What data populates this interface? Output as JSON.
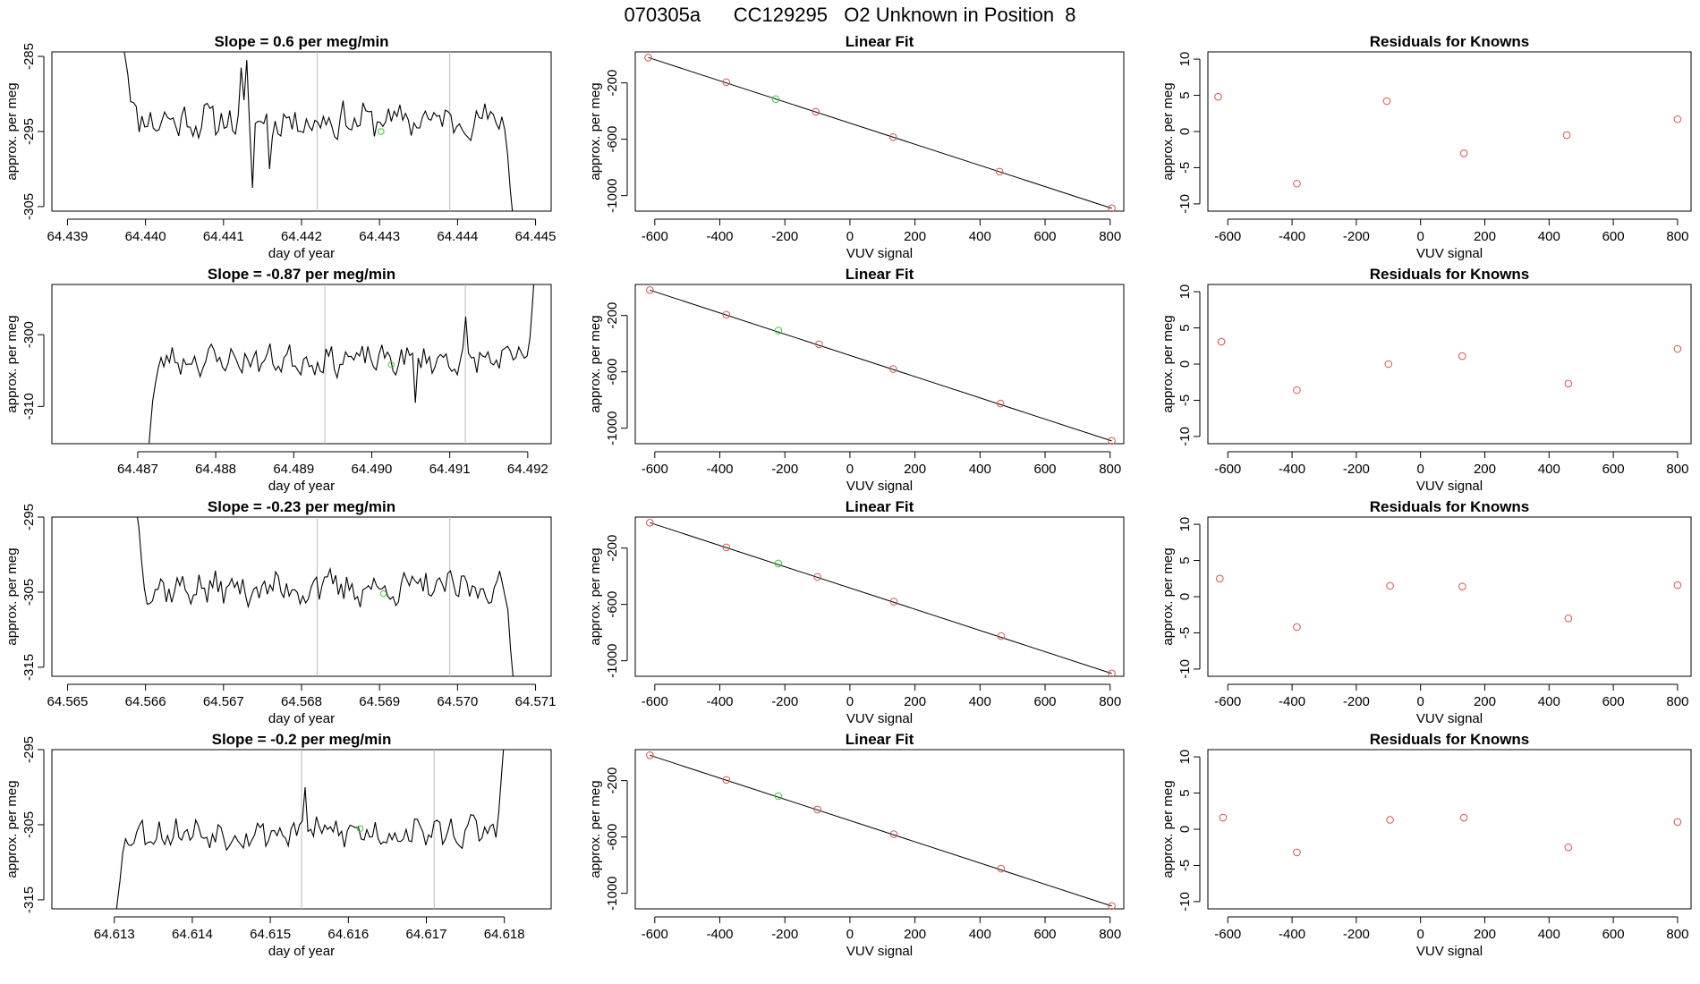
{
  "page": {
    "title": "070305a      CC129295   O2 Unknown in Position  8"
  },
  "styles": {
    "trace_color": "#000000",
    "marker_red": "#d9534f",
    "marker_green": "#33cc33",
    "gray_line": "#bbbbbb"
  },
  "chart_data": [
    {
      "type": "line",
      "row": 0,
      "col": 0,
      "title": "Slope =  0.6  per meg/min",
      "xlabel": "day of year",
      "ylabel": "approx. per meg",
      "xlim": [
        64.4388,
        64.4452
      ],
      "ylim": [
        -305.6,
        -284.4
      ],
      "xticks": [
        64.439,
        64.44,
        64.441,
        64.442,
        64.443,
        64.444,
        64.445
      ],
      "xtick_labels": [
        "64.439",
        "64.440",
        "64.441",
        "64.442",
        "64.443",
        "64.444",
        "64.445"
      ],
      "yticks": [
        -285,
        -295,
        -305
      ],
      "ytick_labels": [
        "-285",
        "-295",
        "-305"
      ],
      "vlines": [
        64.4422,
        64.4439
      ],
      "trace": {
        "x_start": 64.4397,
        "x_end": 64.44475,
        "base": -293.5,
        "amp": 2.0,
        "seed": 11,
        "start_level": -281,
        "end_level": -310,
        "ramp_in": 7,
        "ramp_out": 6,
        "spikes": [
          [
            64.4413,
            -285.5
          ],
          [
            64.44123,
            -286.5
          ],
          [
            64.44138,
            -302.5
          ],
          [
            64.4416,
            -300
          ]
        ]
      },
      "green_point": {
        "x": 64.44302,
        "y": -295.0
      }
    },
    {
      "type": "scatter",
      "row": 0,
      "col": 1,
      "title": "Linear Fit",
      "xlabel": "VUV signal",
      "ylabel": "approx. per meg",
      "xlim": [
        -660,
        842
      ],
      "ylim": [
        -1110,
        20
      ],
      "xticks": [
        -600,
        -400,
        -200,
        0,
        200,
        400,
        600,
        800
      ],
      "xtick_labels": [
        "-600",
        "-400",
        "-200",
        "0",
        "200",
        "400",
        "600",
        "800"
      ],
      "yticks": [
        -200,
        -600,
        -1000
      ],
      "ytick_labels": [
        "-200",
        "-600",
        "-1000"
      ],
      "fit_line": [
        [
          -620,
          -20
        ],
        [
          805,
          -1090
        ]
      ],
      "points": [
        [
          -620,
          -20
        ],
        [
          -380,
          -195
        ],
        [
          -105,
          -405
        ],
        [
          133,
          -585
        ],
        [
          460,
          -830
        ],
        [
          805,
          -1090
        ]
      ],
      "green_point": [
        -228,
        -315
      ]
    },
    {
      "type": "scatter",
      "row": 0,
      "col": 2,
      "title": "Residuals for Knowns",
      "xlabel": "VUV signal",
      "ylabel": "approx. per meg",
      "xlim": [
        -662,
        842
      ],
      "ylim": [
        -11,
        11
      ],
      "xticks": [
        -600,
        -400,
        -200,
        0,
        200,
        400,
        600,
        800
      ],
      "xtick_labels": [
        "-600",
        "-400",
        "-200",
        "0",
        "200",
        "400",
        "600",
        "800"
      ],
      "yticks": [
        10,
        5,
        0,
        -5,
        -10
      ],
      "ytick_labels": [
        "10",
        "5",
        "0",
        "-5",
        "-10"
      ],
      "points": [
        [
          -630,
          4.8
        ],
        [
          -385,
          -7.2
        ],
        [
          -105,
          4.2
        ],
        [
          135,
          -3.0
        ],
        [
          455,
          -0.5
        ],
        [
          800,
          1.7
        ]
      ]
    },
    {
      "type": "line",
      "row": 1,
      "col": 0,
      "title": "Slope =  -0.87  per meg/min",
      "xlabel": "day of year",
      "ylabel": "approx. per meg",
      "xlim": [
        64.4859,
        64.4923
      ],
      "ylim": [
        -315.2,
        -293.0
      ],
      "xticks": [
        64.487,
        64.488,
        64.489,
        64.49,
        64.491,
        64.492
      ],
      "xtick_labels": [
        "64.487",
        "64.488",
        "64.489",
        "64.490",
        "64.491",
        "64.492"
      ],
      "yticks": [
        -300,
        -310
      ],
      "ytick_labels": [
        "-300",
        "-310"
      ],
      "vlines": [
        64.4894,
        64.4912
      ],
      "trace": {
        "x_start": 64.48712,
        "x_end": 64.4921,
        "base": -303.5,
        "amp": 1.7,
        "seed": 23,
        "start_level": -318,
        "end_level": -290,
        "ramp_in": 6,
        "ramp_out": 4,
        "spikes": [
          [
            64.4912,
            -297.5
          ],
          [
            64.49055,
            -309.5
          ]
        ]
      },
      "green_point": {
        "x": 64.49025,
        "y": -304.2
      }
    },
    {
      "type": "scatter",
      "row": 1,
      "col": 1,
      "title": "Linear Fit",
      "xlabel": "VUV signal",
      "ylabel": "approx. per meg",
      "xlim": [
        -660,
        842
      ],
      "ylim": [
        -1110,
        20
      ],
      "xticks": [
        -600,
        -400,
        -200,
        0,
        200,
        400,
        600,
        800
      ],
      "xtick_labels": [
        "-600",
        "-400",
        "-200",
        "0",
        "200",
        "400",
        "600",
        "800"
      ],
      "yticks": [
        -200,
        -600,
        -1000
      ],
      "ytick_labels": [
        "-200",
        "-600",
        "-1000"
      ],
      "fit_line": [
        [
          -615,
          -20
        ],
        [
          805,
          -1090
        ]
      ],
      "points": [
        [
          -615,
          -20
        ],
        [
          -380,
          -195
        ],
        [
          -95,
          -405
        ],
        [
          133,
          -580
        ],
        [
          463,
          -825
        ],
        [
          805,
          -1090
        ]
      ],
      "green_point": [
        -220,
        -307
      ]
    },
    {
      "type": "scatter",
      "row": 1,
      "col": 2,
      "title": "Residuals for Knowns",
      "xlabel": "VUV signal",
      "ylabel": "approx. per meg",
      "xlim": [
        -662,
        842
      ],
      "ylim": [
        -11,
        11
      ],
      "xticks": [
        -600,
        -400,
        -200,
        0,
        200,
        400,
        600,
        800
      ],
      "xtick_labels": [
        "-600",
        "-400",
        "-200",
        "0",
        "200",
        "400",
        "600",
        "800"
      ],
      "yticks": [
        10,
        5,
        0,
        -5,
        -10
      ],
      "ytick_labels": [
        "10",
        "5",
        "0",
        "-5",
        "-10"
      ],
      "points": [
        [
          -620,
          3.1
        ],
        [
          -385,
          -3.6
        ],
        [
          -100,
          0.0
        ],
        [
          130,
          1.1
        ],
        [
          460,
          -2.7
        ],
        [
          800,
          2.1
        ]
      ]
    },
    {
      "type": "line",
      "row": 2,
      "col": 0,
      "title": "Slope =  -0.23  per meg/min",
      "xlabel": "day of year",
      "ylabel": "approx. per meg",
      "xlim": [
        64.5648,
        64.5712
      ],
      "ylim": [
        -316.2,
        -295.0
      ],
      "xticks": [
        64.565,
        64.566,
        64.567,
        64.568,
        64.569,
        64.57,
        64.571
      ],
      "xtick_labels": [
        "64.565",
        "64.566",
        "64.567",
        "64.568",
        "64.569",
        "64.570",
        "64.571"
      ],
      "yticks": [
        -295,
        -305,
        -315
      ],
      "ytick_labels": [
        "-295",
        "-305",
        "-315"
      ],
      "vlines": [
        64.5682,
        64.5699
      ],
      "trace": {
        "x_start": 64.56588,
        "x_end": 64.57075,
        "base": -304.5,
        "amp": 1.9,
        "seed": 37,
        "start_level": -293,
        "end_level": -318,
        "ramp_in": 5,
        "ramp_out": 6,
        "spikes": [
          [
            64.5682,
            -303.0
          ]
        ]
      },
      "green_point": {
        "x": 64.56905,
        "y": -305.2
      }
    },
    {
      "type": "scatter",
      "row": 2,
      "col": 1,
      "title": "Linear Fit",
      "xlabel": "VUV signal",
      "ylabel": "approx. per meg",
      "xlim": [
        -660,
        842
      ],
      "ylim": [
        -1110,
        20
      ],
      "xticks": [
        -600,
        -400,
        -200,
        0,
        200,
        400,
        600,
        800
      ],
      "xtick_labels": [
        "-600",
        "-400",
        "-200",
        "0",
        "200",
        "400",
        "600",
        "800"
      ],
      "yticks": [
        -200,
        -600,
        -1000
      ],
      "ytick_labels": [
        "-200",
        "-600",
        "-1000"
      ],
      "fit_line": [
        [
          -615,
          -20
        ],
        [
          805,
          -1090
        ]
      ],
      "points": [
        [
          -615,
          -20
        ],
        [
          -380,
          -195
        ],
        [
          -100,
          -405
        ],
        [
          135,
          -580
        ],
        [
          465,
          -825
        ],
        [
          805,
          -1090
        ]
      ],
      "green_point": [
        -220,
        -310
      ]
    },
    {
      "type": "scatter",
      "row": 2,
      "col": 2,
      "title": "Residuals for Knowns",
      "xlabel": "VUV signal",
      "ylabel": "approx. per meg",
      "xlim": [
        -662,
        842
      ],
      "ylim": [
        -11,
        11
      ],
      "xticks": [
        -600,
        -400,
        -200,
        0,
        200,
        400,
        600,
        800
      ],
      "xtick_labels": [
        "-600",
        "-400",
        "-200",
        "0",
        "200",
        "400",
        "600",
        "800"
      ],
      "yticks": [
        10,
        5,
        0,
        -5,
        -10
      ],
      "ytick_labels": [
        "10",
        "5",
        "0",
        "-5",
        "-10"
      ],
      "points": [
        [
          -625,
          2.5
        ],
        [
          -385,
          -4.2
        ],
        [
          -95,
          1.5
        ],
        [
          130,
          1.4
        ],
        [
          460,
          -3.0
        ],
        [
          800,
          1.6
        ]
      ]
    },
    {
      "type": "line",
      "row": 3,
      "col": 0,
      "title": "Slope =  -0.2  per meg/min",
      "xlabel": "day of year",
      "ylabel": "approx. per meg",
      "xlim": [
        64.6122,
        64.6186
      ],
      "ylim": [
        -316.2,
        -295.0
      ],
      "xticks": [
        64.613,
        64.614,
        64.615,
        64.616,
        64.617,
        64.618
      ],
      "xtick_labels": [
        "64.613",
        "64.614",
        "64.615",
        "64.616",
        "64.617",
        "64.618"
      ],
      "yticks": [
        -295,
        -305,
        -315
      ],
      "ytick_labels": [
        "-295",
        "-305",
        "-315"
      ],
      "vlines": [
        64.6154,
        64.6171
      ],
      "trace": {
        "x_start": 64.613,
        "x_end": 64.618,
        "base": -306.0,
        "amp": 1.8,
        "seed": 53,
        "start_level": -318,
        "end_level": -293,
        "ramp_in": 6,
        "ramp_out": 4,
        "spikes": [
          [
            64.61545,
            -300.0
          ]
        ]
      },
      "green_point": {
        "x": 64.61615,
        "y": -305.5
      }
    },
    {
      "type": "scatter",
      "row": 3,
      "col": 1,
      "title": "Linear Fit",
      "xlabel": "VUV signal",
      "ylabel": "approx. per meg",
      "xlim": [
        -660,
        842
      ],
      "ylim": [
        -1110,
        20
      ],
      "xticks": [
        -600,
        -400,
        -200,
        0,
        200,
        400,
        600,
        800
      ],
      "xtick_labels": [
        "-600",
        "-400",
        "-200",
        "0",
        "200",
        "400",
        "600",
        "800"
      ],
      "yticks": [
        -200,
        -600,
        -1000
      ],
      "ytick_labels": [
        "-200",
        "-600",
        "-1000"
      ],
      "fit_line": [
        [
          -615,
          -20
        ],
        [
          805,
          -1090
        ]
      ],
      "points": [
        [
          -615,
          -20
        ],
        [
          -380,
          -195
        ],
        [
          -100,
          -405
        ],
        [
          135,
          -580
        ],
        [
          465,
          -825
        ],
        [
          805,
          -1090
        ]
      ],
      "green_point": [
        -220,
        -310
      ]
    },
    {
      "type": "scatter",
      "row": 3,
      "col": 2,
      "title": "Residuals for Knowns",
      "xlabel": "VUV signal",
      "ylabel": "approx. per meg",
      "xlim": [
        -662,
        842
      ],
      "ylim": [
        -11,
        11
      ],
      "xticks": [
        -600,
        -400,
        -200,
        0,
        200,
        400,
        600,
        800
      ],
      "xtick_labels": [
        "-600",
        "-400",
        "-200",
        "0",
        "200",
        "400",
        "600",
        "800"
      ],
      "yticks": [
        10,
        5,
        0,
        -5,
        -10
      ],
      "ytick_labels": [
        "10",
        "5",
        "0",
        "-5",
        "-10"
      ],
      "points": [
        [
          -615,
          1.6
        ],
        [
          -385,
          -3.2
        ],
        [
          -95,
          1.3
        ],
        [
          135,
          1.6
        ],
        [
          460,
          -2.5
        ],
        [
          800,
          1.0
        ]
      ]
    }
  ]
}
